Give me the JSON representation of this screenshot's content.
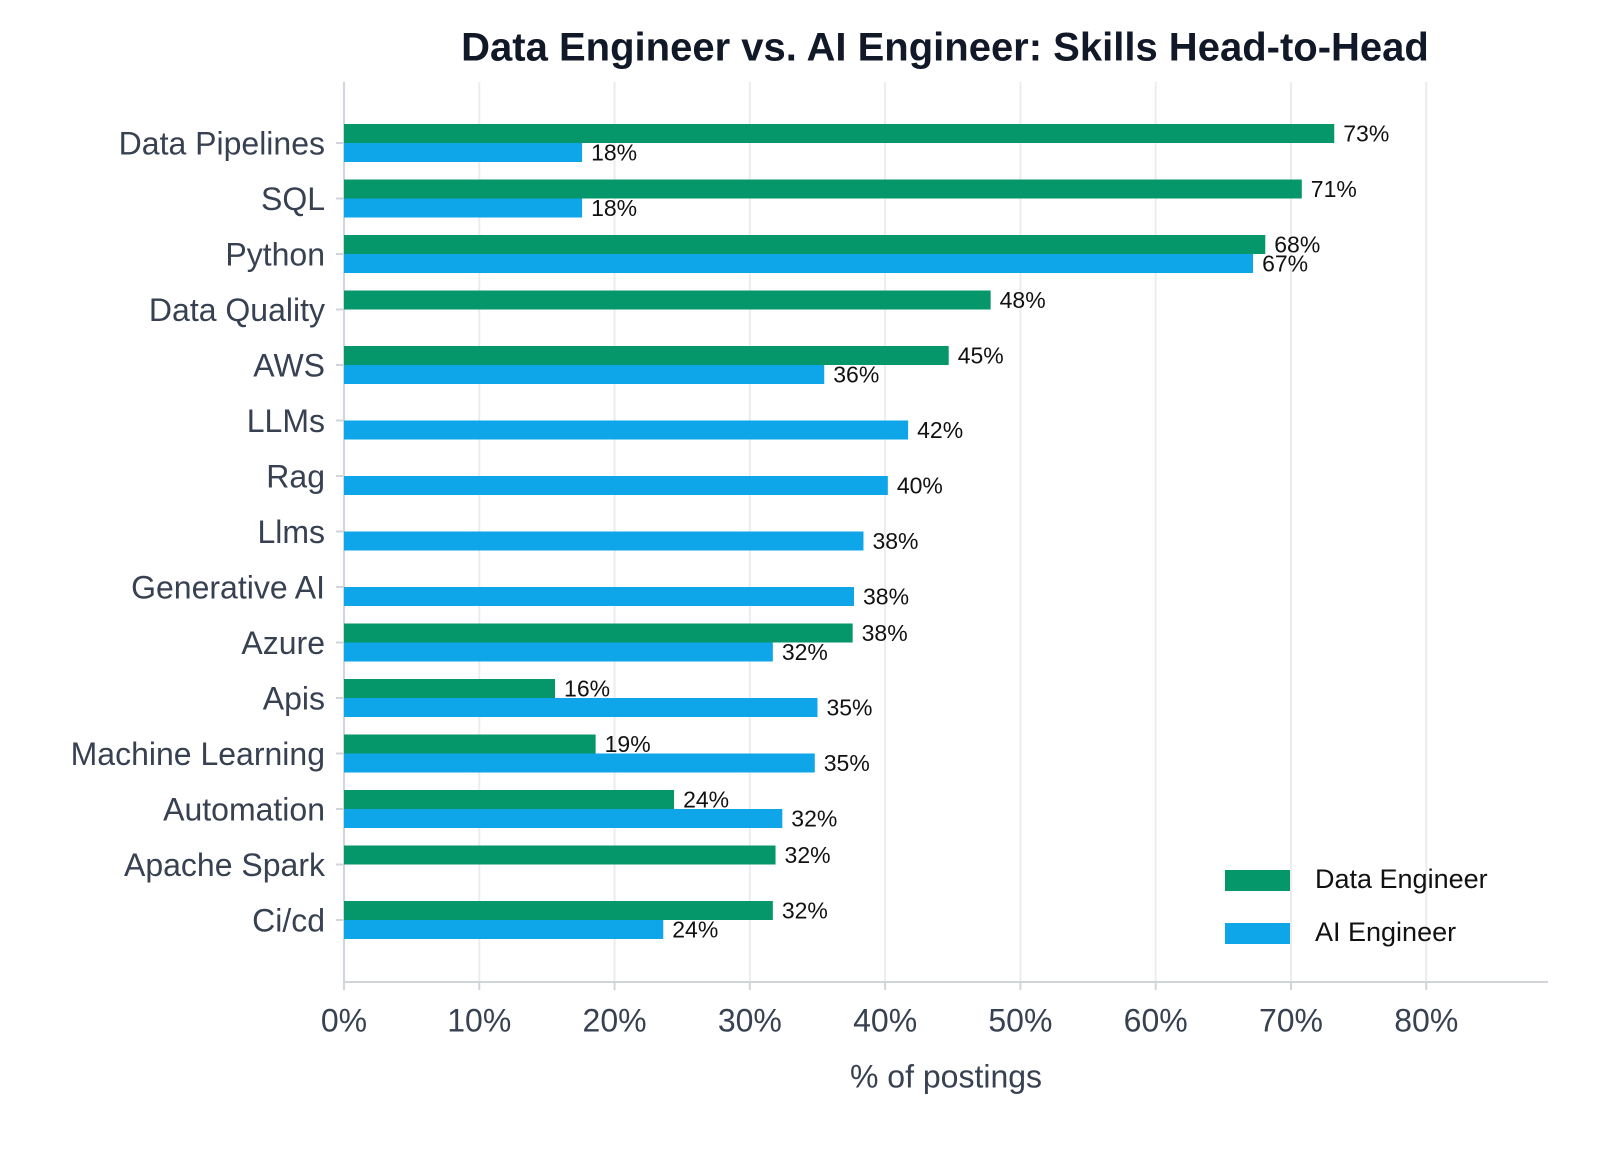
{
  "chart_data": {
    "type": "hbar",
    "title": "Data Engineer vs. AI Engineer: Skills Head-to-Head",
    "x_label": "% of postings",
    "categories": [
      "Data Pipelines",
      "SQL",
      "Python",
      "Data Quality",
      "AWS",
      "LLMs",
      "Rag",
      "Llms",
      "Generative AI",
      "Azure",
      "Apis",
      "Machine Learning",
      "Automation",
      "Apache Spark",
      "Ci/cd"
    ],
    "series": [
      {
        "name": "Data Engineer",
        "color": "#059669",
        "values": [
          73.2,
          70.8,
          68.1,
          47.8,
          44.7,
          null,
          null,
          null,
          null,
          37.6,
          15.6,
          18.6,
          24.4,
          31.9,
          31.7
        ],
        "value_labels": [
          "73%",
          "71%",
          "68%",
          "48%",
          "45%",
          null,
          null,
          null,
          null,
          "38%",
          "16%",
          "19%",
          "24%",
          "32%",
          "32%"
        ]
      },
      {
        "name": "AI Engineer",
        "color": "#0ea5e9",
        "values": [
          17.6,
          17.6,
          67.2,
          null,
          35.5,
          41.7,
          40.2,
          38.4,
          37.7,
          31.7,
          35.0,
          34.8,
          32.4,
          null,
          23.6
        ],
        "value_labels": [
          "18%",
          "18%",
          "67%",
          null,
          "36%",
          "42%",
          "40%",
          "38%",
          "38%",
          "32%",
          "35%",
          "35%",
          "32%",
          null,
          "24%"
        ]
      }
    ],
    "xlim": [
      0,
      89
    ],
    "xticks": [
      {
        "value": 0,
        "label": "0%"
      },
      {
        "value": 10,
        "label": "10%"
      },
      {
        "value": 20,
        "label": "20%"
      },
      {
        "value": 30,
        "label": "30%"
      },
      {
        "value": 40,
        "label": "40%"
      },
      {
        "value": 50,
        "label": "50%"
      },
      {
        "value": 60,
        "label": "60%"
      },
      {
        "value": 70,
        "label": "70%"
      },
      {
        "value": 80,
        "label": "80%"
      }
    ],
    "grid": true,
    "legend": "lower right"
  }
}
